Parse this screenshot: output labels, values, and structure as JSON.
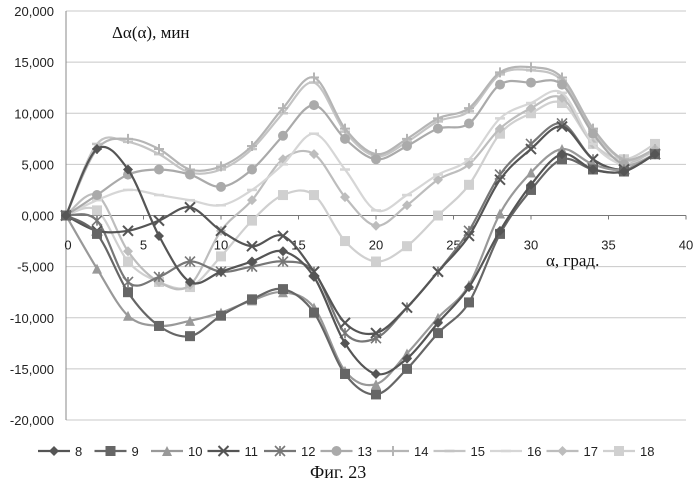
{
  "chart_data": {
    "type": "line",
    "x_ticks": [
      "0",
      "5",
      "10",
      "15",
      "20",
      "25",
      "30",
      "35",
      "40"
    ],
    "y_ticks": [
      "20,000",
      "15,000",
      "10,000",
      "5,000",
      "0,000",
      "-5,000",
      "-10,000",
      "-15,000",
      "-20,000"
    ],
    "xlim": [
      0,
      40
    ],
    "ylim": [
      -20,
      20
    ],
    "grid": "horizontal",
    "ylabel": "Δα(α), мин",
    "xlabel": "α, град.",
    "legend_position": "bottom",
    "caption": "Фиг. 23",
    "series": [
      {
        "name": "8",
        "color": "#555555",
        "marker": "diamond",
        "x": [
          0,
          2,
          4,
          6,
          8,
          10,
          12,
          14,
          16,
          18,
          20,
          22,
          24,
          26,
          28,
          30,
          32,
          34,
          36,
          38
        ],
        "y": [
          0,
          6.5,
          4.5,
          -2,
          -6.5,
          -5.5,
          -4.5,
          -3.5,
          -6,
          -12.5,
          -15.5,
          -14,
          -10.5,
          -7,
          -1.5,
          3,
          6,
          4.5,
          4.3,
          6
        ]
      },
      {
        "name": "9",
        "color": "#666666",
        "marker": "square",
        "x": [
          0,
          2,
          4,
          6,
          8,
          10,
          12,
          14,
          16,
          18,
          20,
          22,
          24,
          26,
          28,
          30,
          32,
          34,
          36,
          38
        ],
        "y": [
          0,
          -1.8,
          -7.5,
          -10.8,
          -11.8,
          -9.8,
          -8.2,
          -7.2,
          -9.5,
          -15.5,
          -17.5,
          -15,
          -11.5,
          -8.5,
          -1.8,
          2.5,
          5.5,
          4.5,
          4.3,
          6
        ]
      },
      {
        "name": "10",
        "color": "#999999",
        "marker": "triangle",
        "x": [
          0,
          2,
          4,
          6,
          8,
          10,
          12,
          14,
          16,
          18,
          20,
          22,
          24,
          26,
          28,
          30,
          32,
          34,
          36,
          38
        ],
        "y": [
          0,
          -5.2,
          -9.8,
          -10.8,
          -10.3,
          -9.5,
          -8.3,
          -7.5,
          -9,
          -15.2,
          -16.5,
          -13.5,
          -10,
          -6.8,
          0.2,
          4.2,
          6.5,
          5,
          4.5,
          6
        ]
      },
      {
        "name": "11",
        "color": "#555555",
        "marker": "x",
        "x": [
          0,
          2,
          4,
          6,
          8,
          10,
          12,
          14,
          16,
          18,
          20,
          22,
          24,
          26,
          28,
          30,
          32,
          34,
          36,
          38
        ],
        "y": [
          0,
          -1.5,
          -1.5,
          -0.5,
          0.8,
          -1.5,
          -3,
          -2,
          -5.5,
          -10.5,
          -11.5,
          -9,
          -5.5,
          -2,
          3.5,
          6.5,
          8.7,
          5.5,
          4.5,
          6
        ]
      },
      {
        "name": "12",
        "color": "#777777",
        "marker": "asterisk",
        "x": [
          0,
          2,
          4,
          6,
          8,
          10,
          12,
          14,
          16,
          18,
          20,
          22,
          24,
          26,
          28,
          30,
          32,
          34,
          36,
          38
        ],
        "y": [
          0,
          -0.5,
          -6.5,
          -6,
          -4.5,
          -5.5,
          -5,
          -4.5,
          -5.5,
          -11.5,
          -12,
          -9,
          -5.5,
          -1.5,
          4,
          7,
          9,
          5.5,
          4.5,
          6
        ]
      },
      {
        "name": "13",
        "color": "#aaaaaa",
        "marker": "circle",
        "x": [
          0,
          2,
          4,
          6,
          8,
          10,
          12,
          14,
          16,
          18,
          20,
          22,
          24,
          26,
          28,
          30,
          32,
          34,
          36,
          38
        ],
        "y": [
          0,
          2,
          4,
          4.5,
          4,
          2.8,
          4.5,
          7.8,
          10.8,
          7.5,
          5.5,
          6.8,
          8.5,
          9,
          12.8,
          13,
          12.8,
          8,
          5,
          6
        ]
      },
      {
        "name": "14",
        "color": "#b5b5b5",
        "marker": "plus",
        "x": [
          0,
          2,
          4,
          6,
          8,
          10,
          12,
          14,
          16,
          18,
          20,
          22,
          24,
          26,
          28,
          30,
          32,
          34,
          36,
          38
        ],
        "y": [
          0,
          6.5,
          7.5,
          6.5,
          4.5,
          4.8,
          6.8,
          10.5,
          13.5,
          8.5,
          6,
          7.5,
          9.5,
          10.5,
          14,
          14.5,
          13.5,
          8.5,
          5.5,
          6.5
        ]
      },
      {
        "name": "15",
        "color": "#c4c4c4",
        "marker": "dash",
        "x": [
          0,
          2,
          4,
          6,
          8,
          10,
          12,
          14,
          16,
          18,
          20,
          22,
          24,
          26,
          28,
          30,
          32,
          34,
          36,
          38
        ],
        "y": [
          0,
          7,
          7.2,
          6,
          4.2,
          4.5,
          6.5,
          10,
          13,
          8.2,
          5.8,
          7.2,
          9.2,
          10.2,
          13.8,
          14.2,
          13.2,
          8.3,
          5.4,
          6.3
        ]
      },
      {
        "name": "16",
        "color": "#d6d6d6",
        "marker": "dash",
        "x": [
          0,
          2,
          4,
          6,
          8,
          10,
          12,
          14,
          16,
          18,
          20,
          22,
          24,
          26,
          28,
          30,
          32,
          34,
          36,
          38
        ],
        "y": [
          0,
          1.5,
          2.5,
          2,
          1.5,
          1,
          2.5,
          5,
          8,
          4.5,
          0.5,
          2,
          4,
          5.5,
          9.5,
          11,
          12,
          7,
          5,
          6
        ]
      },
      {
        "name": "17",
        "color": "#bdbdbd",
        "marker": "diamond",
        "x": [
          0,
          2,
          4,
          6,
          8,
          10,
          12,
          14,
          16,
          18,
          20,
          22,
          24,
          26,
          28,
          30,
          32,
          34,
          36,
          38
        ],
        "y": [
          0,
          2,
          -3.5,
          -6.5,
          -6.8,
          -1.5,
          1.5,
          5.5,
          6,
          1.8,
          -1,
          1,
          3.5,
          5,
          8.5,
          10.5,
          11.5,
          7,
          5,
          6.5
        ]
      },
      {
        "name": "18",
        "color": "#d0d0d0",
        "marker": "square",
        "x": [
          0,
          2,
          4,
          6,
          8,
          10,
          12,
          14,
          16,
          18,
          20,
          22,
          24,
          26,
          28,
          30,
          32,
          34,
          36,
          38
        ],
        "y": [
          0,
          0.5,
          -4.5,
          -6.5,
          -7,
          -4,
          -0.5,
          2,
          2,
          -2.5,
          -4.5,
          -3,
          0,
          3,
          8,
          10,
          11,
          7,
          5.5,
          7
        ]
      }
    ]
  }
}
